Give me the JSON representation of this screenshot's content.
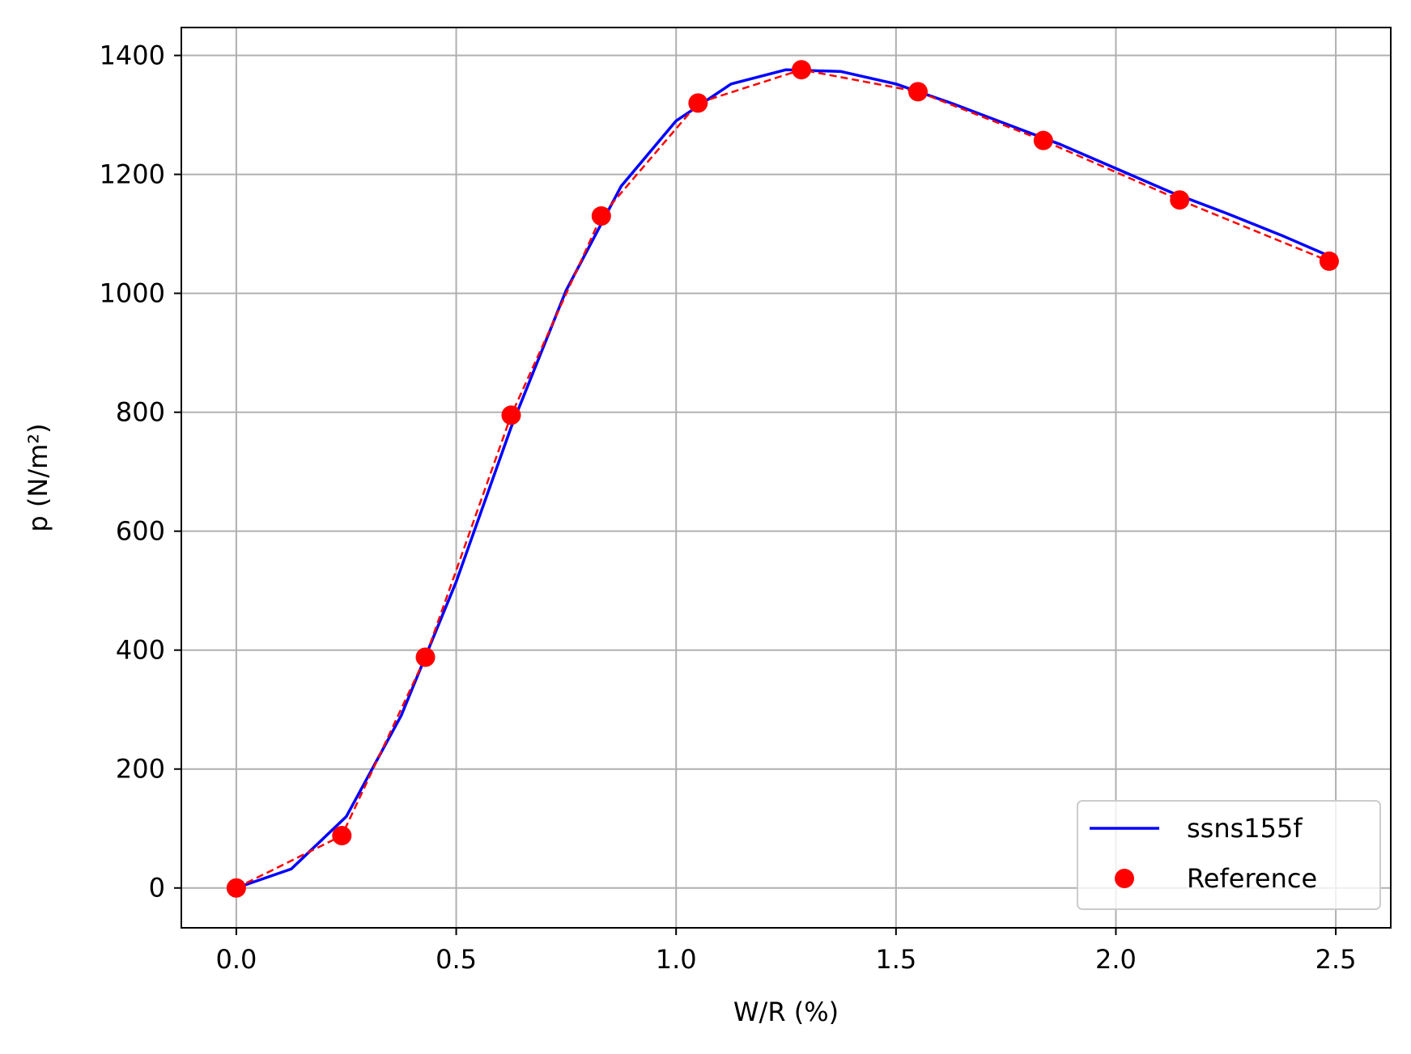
{
  "chart_data": {
    "type": "line",
    "xlabel": "W/R (%)",
    "ylabel": "p (N/m²)",
    "xlim": [
      -0.125,
      2.625
    ],
    "ylim": [
      -67,
      1447
    ],
    "xticks": [
      0.0,
      0.5,
      1.0,
      1.5,
      2.0,
      2.5
    ],
    "xtick_labels": [
      "0.0",
      "0.5",
      "1.0",
      "1.5",
      "2.0",
      "2.5"
    ],
    "yticks": [
      0,
      200,
      400,
      600,
      800,
      1000,
      1200,
      1400
    ],
    "ytick_labels": [
      "0",
      "200",
      "400",
      "600",
      "800",
      "1000",
      "1200",
      "1400"
    ],
    "grid": true,
    "legend_position": "bottom-right",
    "series": [
      {
        "name": "ssns155f",
        "style": "solid-line",
        "color": "#0000ff",
        "x": [
          0.0,
          0.125,
          0.25,
          0.375,
          0.5,
          0.625,
          0.75,
          0.875,
          1.0,
          1.125,
          1.25,
          1.375,
          1.5,
          1.625,
          1.75,
          1.875,
          2.0,
          2.125,
          2.25,
          2.375,
          2.5
        ],
        "y": [
          0,
          32,
          120,
          290,
          515,
          775,
          1005,
          1180,
          1290,
          1352,
          1376,
          1373,
          1352,
          1320,
          1285,
          1250,
          1210,
          1170,
          1135,
          1098,
          1058
        ]
      },
      {
        "name": "Reference",
        "style": "markers",
        "color": "#ff0000",
        "x": [
          0.0,
          0.24,
          0.43,
          0.625,
          0.83,
          1.05,
          1.285,
          1.55,
          1.835,
          2.145,
          2.485
        ],
        "y": [
          0,
          88,
          388,
          795,
          1130,
          1320,
          1376,
          1339,
          1257,
          1157,
          1054
        ]
      },
      {
        "name": "",
        "style": "dashed-line",
        "color": "#ff0000",
        "x": [
          0.0,
          0.24,
          0.43,
          0.625,
          0.83,
          1.05,
          1.285,
          1.55,
          1.835,
          2.145,
          2.485
        ],
        "y": [
          0,
          88,
          388,
          795,
          1130,
          1320,
          1376,
          1339,
          1257,
          1157,
          1054
        ]
      }
    ]
  }
}
